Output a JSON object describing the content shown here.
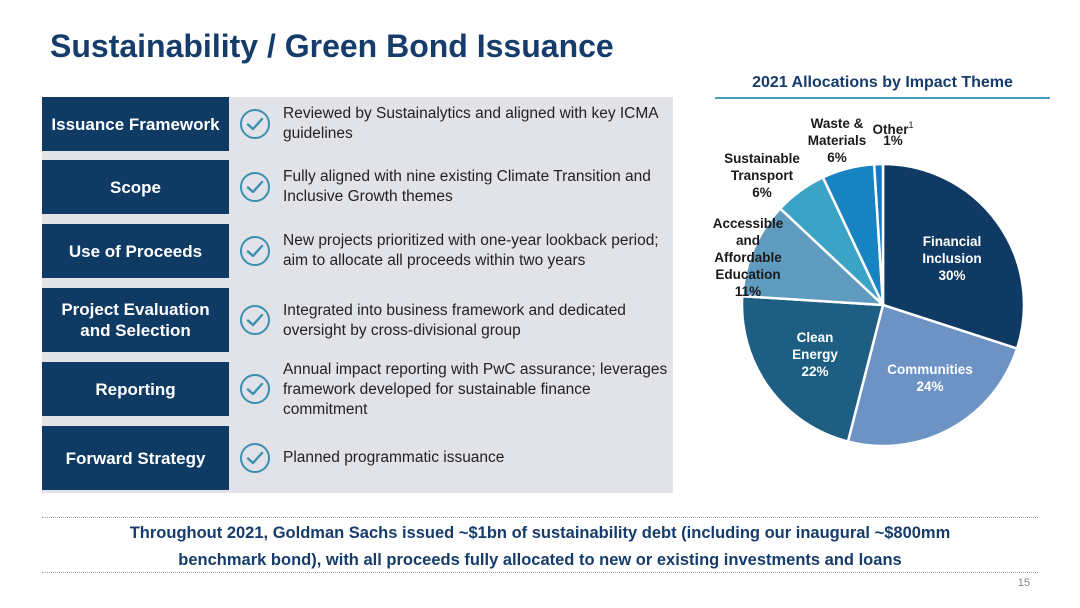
{
  "title": "Sustainability / Green Bond Issuance",
  "framework": [
    {
      "label": "Issuance Framework",
      "desc": "Reviewed by Sustainalytics and aligned with key ICMA guidelines"
    },
    {
      "label": "Scope",
      "desc": "Fully aligned with nine existing Climate Transition and Inclusive Growth themes"
    },
    {
      "label": "Use of Proceeds",
      "desc": "New projects prioritized with one-year lookback period; aim to allocate all proceeds within two years"
    },
    {
      "label": "Project Evaluation and Selection",
      "desc": "Integrated into business framework and dedicated oversight by cross-divisional group"
    },
    {
      "label": "Reporting",
      "desc": "Annual impact reporting with PwC assurance; leverages framework developed for sustainable finance commitment"
    },
    {
      "label": "Forward Strategy",
      "desc": "Planned programmatic issuance"
    }
  ],
  "chart_data": {
    "type": "pie",
    "title": "2021 Allocations by Impact Theme",
    "slices": [
      {
        "name": "Financial Inclusion",
        "value": 30,
        "label": "30%",
        "color": "#0e3a63"
      },
      {
        "name": "Communities",
        "value": 24,
        "label": "24%",
        "color": "#6c93c4"
      },
      {
        "name": "Clean Energy",
        "value": 22,
        "label": "22%",
        "color": "#1d5e82"
      },
      {
        "name": "Accessible and Affordable Education",
        "value": 11,
        "label": "11%",
        "color": "#5f9bbf"
      },
      {
        "name": "Sustainable Transport",
        "value": 6,
        "label": "6%",
        "color": "#3aa3c6"
      },
      {
        "name": "Waste & Materials",
        "value": 6,
        "label": "6%",
        "color": "#1883c2"
      },
      {
        "name": "Other",
        "value": 1,
        "label": "1%",
        "color": "#1779c2",
        "footnote": "1"
      }
    ]
  },
  "footer": {
    "line1": "Throughout 2021, Goldman Sachs issued ~$1bn of sustainability debt (including our inaugural ~$800mm",
    "line2": "benchmark bond), with all proceeds fully allocated to new or existing investments and loans"
  },
  "page_number": "15",
  "colors": {
    "brand": "#163c6b",
    "label_bg": "#0e3a63",
    "check": "#3c8fb0",
    "panel": "#e1e3e8"
  }
}
